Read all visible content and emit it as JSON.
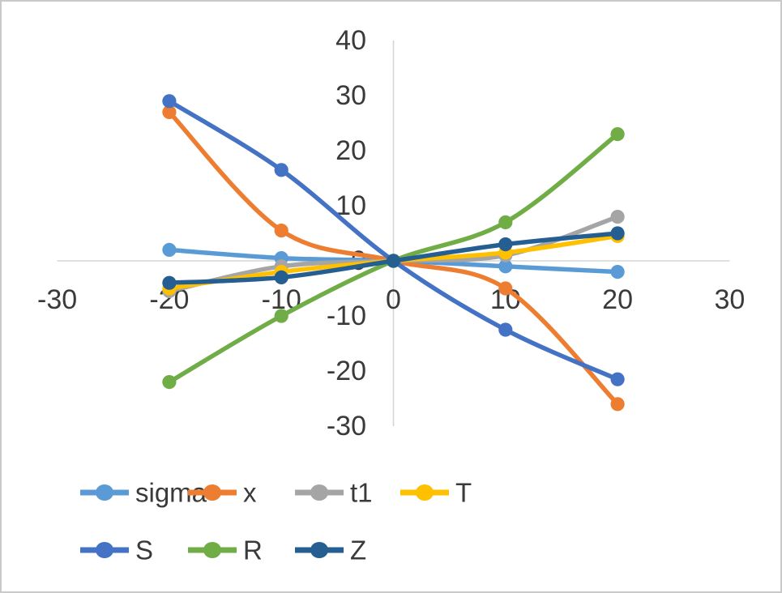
{
  "frame": {
    "background": "#ffffff",
    "border_color": "#c9c9c9"
  },
  "chart_data": {
    "type": "line",
    "title": "",
    "xlabel": "",
    "ylabel": "",
    "x": [
      -20,
      -10,
      0,
      10,
      20
    ],
    "series": [
      {
        "name": "sigma",
        "color": "#5B9BD5",
        "values": [
          2,
          0.5,
          0,
          -1,
          -2
        ]
      },
      {
        "name": "x",
        "color": "#ED7D31",
        "values": [
          27,
          5.5,
          0,
          -5,
          -26
        ]
      },
      {
        "name": "t1",
        "color": "#A5A5A5",
        "values": [
          -5.5,
          -1,
          0,
          1,
          8
        ]
      },
      {
        "name": "T",
        "color": "#FFC000",
        "values": [
          -5,
          -2,
          0,
          1.5,
          4.5
        ]
      },
      {
        "name": "S",
        "color": "#4472C4",
        "values": [
          29,
          16.5,
          0,
          -12.5,
          -21.5
        ]
      },
      {
        "name": "R",
        "color": "#70AD47",
        "values": [
          -22,
          -10,
          0,
          7,
          23
        ]
      },
      {
        "name": "Z",
        "color": "#255E91",
        "values": [
          -4,
          -3,
          0,
          3,
          5
        ]
      }
    ],
    "x_ticks": [
      -30,
      -20,
      -10,
      0,
      10,
      20,
      30
    ],
    "y_ticks": [
      40,
      30,
      20,
      10,
      0,
      -10,
      -20,
      -30
    ],
    "xlim": [
      -30,
      30
    ],
    "ylim": [
      -30,
      40
    ],
    "grid": false,
    "smooth_lines": true,
    "marker": "circle",
    "axis_color": "#D6D6D6",
    "tick_label_color": "#3a3a3a",
    "legend_position": "bottom",
    "legend_rows": [
      [
        "sigma",
        "x",
        "t1",
        "T"
      ],
      [
        "S",
        "R",
        "Z"
      ]
    ]
  }
}
